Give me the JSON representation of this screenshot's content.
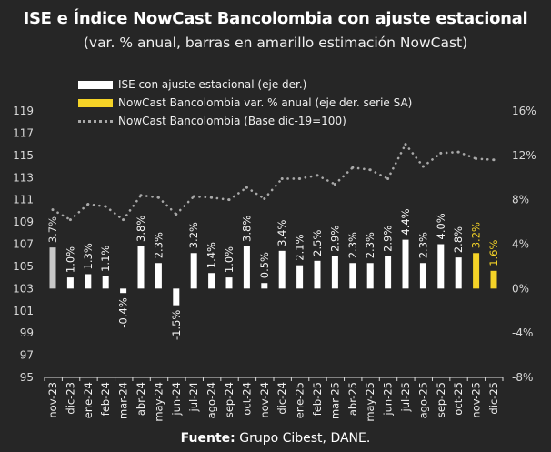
{
  "chart_data": {
    "type": "bar",
    "title": "ISE e Índice NowCast Bancolombia con ajuste estacional",
    "subtitle": "(var. % anual, barras en amarillo estimación NowCast)",
    "categories": [
      "nov-23",
      "dic-23",
      "ene-24",
      "feb-24",
      "mar-24",
      "abr-24",
      "may-24",
      "jun-24",
      "jul-24",
      "ago-24",
      "sep-24",
      "oct-24",
      "nov-24",
      "dic-24",
      "ene-25",
      "feb-25",
      "mar-25",
      "abr-25",
      "may-25",
      "jun-25",
      "jul-25",
      "ago-25",
      "sep-25",
      "oct-25",
      "nov-25",
      "dic-25"
    ],
    "series": [
      {
        "name": "ISE con ajuste estacional  (eje der.)",
        "type": "bar",
        "axis": "right",
        "color": "#ffffff",
        "values": [
          3.7,
          1.0,
          1.3,
          1.1,
          -0.4,
          3.8,
          2.3,
          -1.5,
          3.2,
          1.4,
          1.0,
          3.8,
          0.5,
          3.4,
          2.1,
          2.5,
          2.9,
          2.3,
          2.3,
          2.9,
          4.4,
          2.3,
          4.0,
          2.8,
          null,
          null
        ],
        "labels": [
          "3.7%",
          "1.0%",
          "1.3%",
          "1.1%",
          "-0.4%",
          "3.8%",
          "2.3%",
          "-1.5%",
          "3.2%",
          "1.4%",
          "1.0%",
          "3.8%",
          "0.5%",
          "3.4%",
          "2.1%",
          "2.5%",
          "2.9%",
          "2.3%",
          "2.3%",
          "2.9%",
          "4.4%",
          "2.3%",
          "4.0%",
          "2.8%",
          "",
          ""
        ]
      },
      {
        "name": "NowCast Bancolombia var. % anual (eje der. serie SA)",
        "type": "bar",
        "axis": "right",
        "color": "#f5d327",
        "values": [
          null,
          null,
          null,
          null,
          null,
          null,
          null,
          null,
          null,
          null,
          null,
          null,
          null,
          null,
          null,
          null,
          null,
          null,
          null,
          null,
          null,
          null,
          null,
          null,
          3.2,
          1.6
        ],
        "labels": [
          "",
          "",
          "",
          "",
          "",
          "",
          "",
          "",
          "",
          "",
          "",
          "",
          "",
          "",
          "",
          "",
          "",
          "",
          "",
          "",
          "",
          "",
          "",
          "",
          "3.2%",
          "1.6%"
        ]
      },
      {
        "name": "NowCast Bancolombia (Base dic-19=100)",
        "type": "line",
        "style": "dotted",
        "axis": "left",
        "color": "#a8a8a8",
        "values": [
          110.1,
          109.2,
          110.6,
          110.4,
          109.2,
          111.4,
          111.2,
          109.7,
          111.3,
          111.2,
          111.0,
          112.1,
          111.1,
          112.9,
          112.9,
          113.2,
          112.4,
          113.9,
          113.7,
          112.9,
          116.0,
          114.0,
          115.2,
          115.3,
          114.7,
          114.6
        ]
      }
    ],
    "first_bar_color": "#c8c8c8",
    "left_axis": {
      "ylim": [
        95,
        119
      ],
      "ticks": [
        "95",
        "97",
        "99",
        "101",
        "103",
        "105",
        "107",
        "109",
        "111",
        "113",
        "115",
        "117",
        "119"
      ]
    },
    "right_axis": {
      "ylim": [
        -8,
        16
      ],
      "ticks": [
        "-8%",
        "-4%",
        "0%",
        "4%",
        "8%",
        "12%",
        "16%"
      ]
    },
    "grid": false,
    "legend_placement": "top-left"
  },
  "footer": {
    "source_label": "Fuente:",
    "source_text": " Grupo Cibest, DANE."
  }
}
